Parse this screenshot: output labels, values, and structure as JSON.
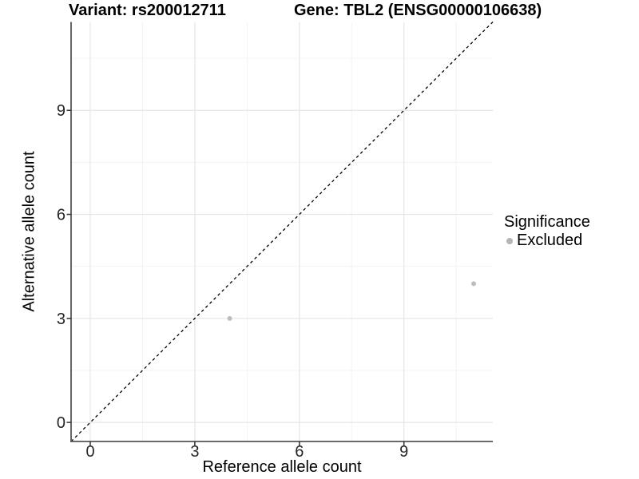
{
  "chart_data": {
    "type": "scatter",
    "title_variant": "Variant: rs200012711",
    "title_gene": "Gene: TBL2 (ENSG00000106638)",
    "xlabel": "Reference allele count",
    "ylabel": "Alternative allele count",
    "xlim": [
      -0.55,
      11.55
    ],
    "ylim": [
      -0.55,
      11.55
    ],
    "x_ticks": [
      0,
      3,
      6,
      9
    ],
    "y_ticks": [
      0,
      3,
      6,
      9
    ],
    "x_minor_ticks": [
      1.5,
      4.5,
      7.5,
      10.5
    ],
    "y_minor_ticks": [
      1.5,
      4.5,
      7.5,
      10.5
    ],
    "grid": true,
    "points": [
      {
        "x": 4,
        "y": 3,
        "significance": "Excluded"
      },
      {
        "x": 11,
        "y": 4,
        "significance": "Excluded"
      }
    ],
    "identity_line": {
      "equation": "y = x",
      "style": "dashed",
      "color": "#000000"
    },
    "legend": {
      "title": "Significance",
      "position": "right",
      "items": [
        {
          "label": "Excluded",
          "color": "#b5b5b5"
        }
      ]
    },
    "colors": {
      "background": "#ffffff",
      "point": "#bdbdbd",
      "grid_major": "#e5e5e5",
      "grid_minor": "#f1f1f1",
      "axis_line": "#545454",
      "tick_mark": "#333333",
      "tick_label": "#262626",
      "title": "#000000"
    }
  }
}
